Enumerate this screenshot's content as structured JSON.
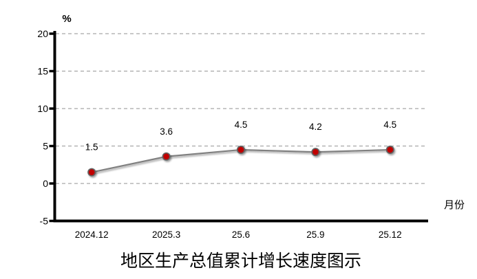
{
  "chart_data": {
    "type": "line",
    "title": "地区生产总值累计增长速度图示",
    "ylabel": "%",
    "xlabel": "月份",
    "categories": [
      "2024.12",
      "2025.3",
      "25.6",
      "25.9",
      "25.12"
    ],
    "series": [
      {
        "name": "地区生产总值累计增长速度",
        "values": [
          1.5,
          3.6,
          4.5,
          4.2,
          4.5
        ]
      }
    ],
    "data_labels": [
      "1.5",
      "3.6",
      "4.5",
      "4.2",
      "4.5"
    ],
    "yticks": [
      20,
      15,
      10,
      5,
      0,
      -5
    ],
    "ylim": [
      -5,
      20
    ],
    "grid": true,
    "grid_style": "dashed",
    "legend_position": "none",
    "colors": {
      "line": "#808080",
      "marker_fill": "#c00000",
      "marker_stroke": "#636363",
      "gridline": "#a6a6a6",
      "axis": "#000000",
      "label_text": "#000000"
    }
  }
}
